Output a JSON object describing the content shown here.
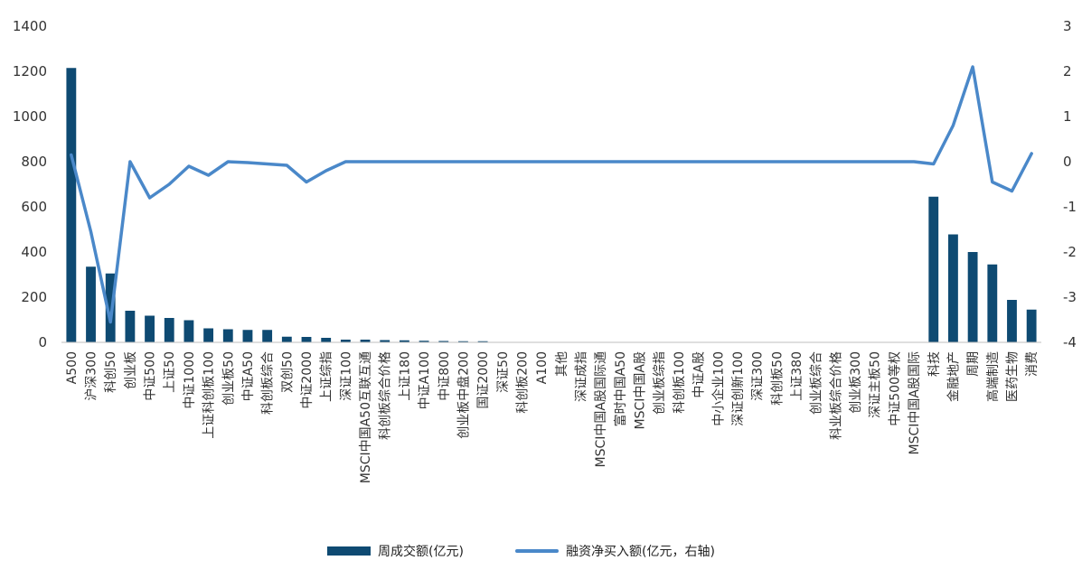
{
  "chart_data": {
    "type": "bar",
    "categories": [
      "A500",
      "沪深300",
      "科创50",
      "创业板",
      "中证500",
      "上证50",
      "中证1000",
      "上证科创板100",
      "创业板50",
      "中证A50",
      "科创板综合",
      "双创50",
      "中证2000",
      "上证综指",
      "深证100",
      "MSCI中国A50互联互通",
      "科创板综合价格",
      "上证180",
      "中证A100",
      "中证800",
      "创业板中盘200",
      "国证2000",
      "深证50",
      "科创板200",
      "A100",
      "其他",
      "深证成指",
      "MSCI中国A股国际通",
      "富时中国A50",
      "MSCI中国A股",
      "创业板综指",
      "科创板100",
      "中证A股",
      "中小企业100",
      "深证创新100",
      "深证300",
      "科创板50",
      "上证380",
      "创业板综合",
      "科业板综合价格",
      "创业板300",
      "深证主板50",
      "中证500等权",
      "MSCI中国A股国际",
      "科技",
      "金融地产",
      "周期",
      "高端制造",
      "医药生物",
      "消费"
    ],
    "series": [
      {
        "name": "周成交额(亿元)",
        "type": "bar",
        "axis": "left",
        "color": "#0e4a72",
        "values": [
          1215,
          335,
          305,
          140,
          118,
          108,
          98,
          62,
          58,
          55,
          55,
          25,
          24,
          20,
          12,
          12,
          10,
          9,
          7,
          6,
          5,
          5,
          0,
          0,
          0,
          0,
          0,
          0,
          0,
          0,
          0,
          0,
          0,
          0,
          0,
          0,
          0,
          0,
          0,
          0,
          0,
          0,
          0,
          0,
          645,
          478,
          400,
          345,
          188,
          145
        ]
      },
      {
        "name": "融资净买入额(亿元，右轴)",
        "type": "line",
        "axis": "right",
        "color": "#4a88c9",
        "values": [
          0.15,
          -1.55,
          -3.55,
          0.0,
          -0.8,
          -0.5,
          -0.1,
          -0.3,
          0.0,
          -0.02,
          -0.05,
          -0.08,
          -0.45,
          -0.2,
          0.0,
          0.0,
          0.0,
          0.0,
          0.0,
          0.0,
          0.0,
          0.0,
          0.0,
          0.0,
          0.0,
          0.0,
          0.0,
          0.0,
          0.0,
          0.0,
          0.0,
          0.0,
          0.0,
          0.0,
          0.0,
          0.0,
          0.0,
          0.0,
          0.0,
          0.0,
          0.0,
          0.0,
          0.0,
          0.0,
          -0.05,
          0.8,
          2.1,
          -0.45,
          -0.65,
          0.18
        ]
      }
    ],
    "y_left": {
      "min": 0,
      "max": 1400,
      "ticks": [
        "0",
        "200",
        "400",
        "600",
        "800",
        "1000",
        "1200",
        "1400"
      ]
    },
    "y_right": {
      "min": -4,
      "max": 3,
      "ticks": [
        "-4",
        "-3",
        "-2",
        "-1",
        "0",
        "1",
        "2",
        "3"
      ]
    },
    "legend_position": "bottom-center",
    "grid": false
  }
}
